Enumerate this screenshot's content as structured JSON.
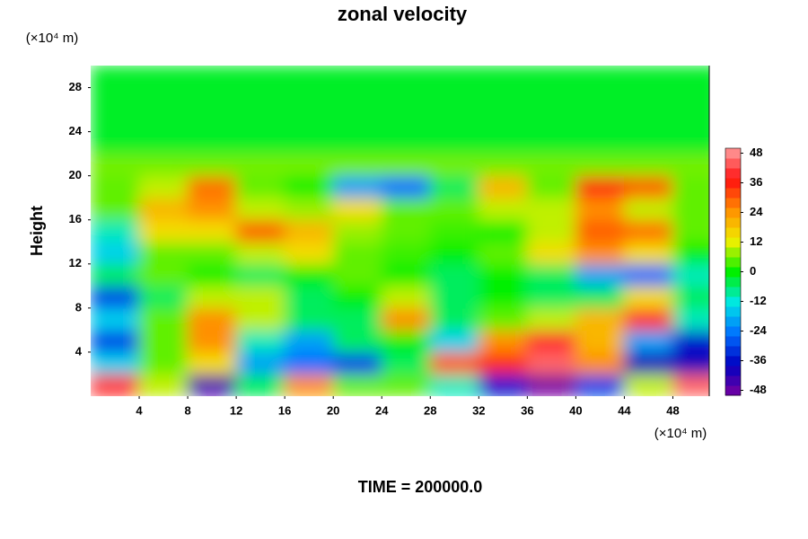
{
  "chart_data": {
    "type": "heatmap",
    "title": "zonal velocity",
    "y_label": "Height",
    "y_unit": "(×10⁴ m)",
    "x_unit": "(×10⁴ m)",
    "footer": "TIME = 200000.0",
    "xlim": [
      0,
      51
    ],
    "ylim": [
      0,
      30
    ],
    "xticks": [
      4,
      8,
      12,
      16,
      20,
      24,
      28,
      32,
      36,
      40,
      44,
      48
    ],
    "yticks": [
      4,
      8,
      12,
      16,
      20,
      24,
      28
    ],
    "zlim": [
      -50,
      50
    ],
    "zticks": [
      -48,
      -36,
      -24,
      -12,
      0,
      12,
      24,
      36,
      48
    ],
    "colorscale": [
      "#7a00a0",
      "#0000c0",
      "#0070ff",
      "#00e8e8",
      "#00f000",
      "#f0f000",
      "#ff9000",
      "#ff1010",
      "#ffa0a0"
    ],
    "x": [
      2,
      6,
      10,
      14,
      18,
      22,
      26,
      30,
      34,
      38,
      42,
      46,
      50
    ],
    "y": [
      1,
      3,
      5,
      7,
      9,
      11,
      13,
      15,
      17,
      19,
      21,
      23,
      25,
      27,
      29
    ],
    "z": [
      [
        40,
        10,
        -45,
        -5,
        25,
        5,
        5,
        -10,
        -35,
        -50,
        -30,
        10,
        45
      ],
      [
        -15,
        5,
        15,
        -20,
        -25,
        -30,
        -5,
        30,
        35,
        45,
        25,
        -40,
        -40
      ],
      [
        -30,
        5,
        25,
        -10,
        -20,
        -5,
        0,
        -15,
        25,
        40,
        20,
        -20,
        -35
      ],
      [
        -15,
        5,
        25,
        10,
        -5,
        -5,
        25,
        -5,
        5,
        10,
        20,
        40,
        -10
      ],
      [
        -30,
        -5,
        10,
        10,
        -5,
        0,
        10,
        -5,
        0,
        -5,
        -5,
        15,
        -5
      ],
      [
        -5,
        5,
        0,
        -5,
        0,
        5,
        0,
        -5,
        0,
        -5,
        -20,
        -25,
        -10
      ],
      [
        -15,
        5,
        5,
        10,
        15,
        5,
        3,
        0,
        5,
        15,
        25,
        15,
        0
      ],
      [
        -10,
        15,
        15,
        30,
        20,
        8,
        5,
        3,
        0,
        10,
        30,
        28,
        5
      ],
      [
        5,
        20,
        25,
        10,
        8,
        15,
        5,
        5,
        10,
        10,
        25,
        10,
        5
      ],
      [
        5,
        10,
        28,
        5,
        0,
        -20,
        -25,
        -5,
        20,
        5,
        35,
        30,
        5
      ],
      [
        6,
        6,
        6,
        6,
        6,
        6,
        6,
        6,
        6,
        6,
        6,
        6,
        6
      ],
      [
        -2,
        -2,
        -2,
        -2,
        -2,
        -2,
        -2,
        -2,
        -2,
        -2,
        -2,
        -2,
        -2
      ],
      [
        -2,
        -2,
        -2,
        -2,
        -2,
        -2,
        -2,
        -2,
        -2,
        -2,
        -2,
        -2,
        -2
      ],
      [
        -2,
        -2,
        -2,
        -2,
        -2,
        -2,
        -2,
        -2,
        -2,
        -2,
        -2,
        -2,
        -2
      ],
      [
        -2,
        -2,
        -2,
        -2,
        -2,
        -2,
        -2,
        -2,
        -2,
        -2,
        -2,
        -2,
        -2
      ]
    ]
  }
}
